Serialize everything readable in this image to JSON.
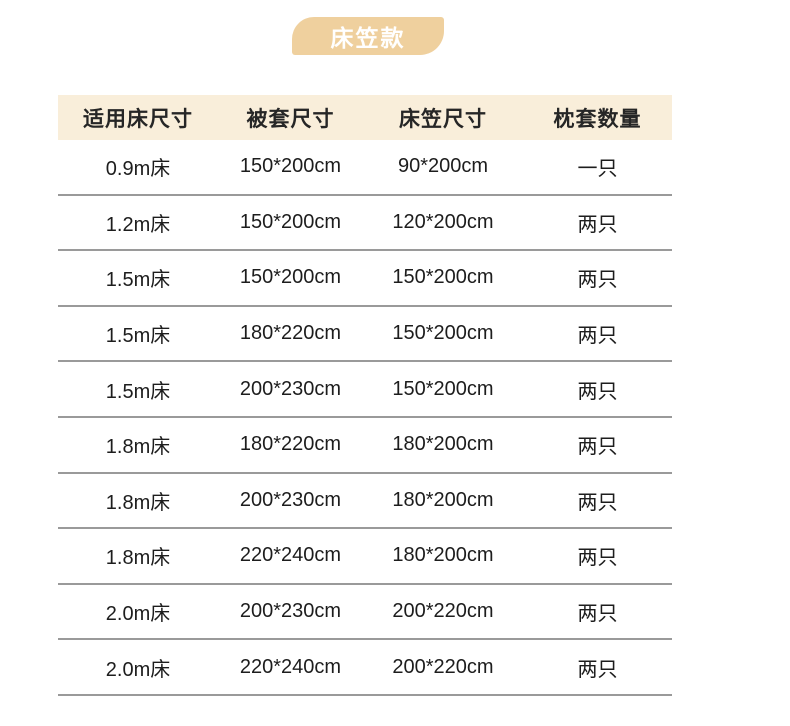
{
  "ribbon": {
    "label": "床笠款"
  },
  "table": {
    "columns": [
      "适用床尺寸",
      "被套尺寸",
      "床笠尺寸",
      "枕套数量"
    ],
    "rows": [
      [
        "0.9m床",
        "150*200cm",
        "90*200cm",
        "一只"
      ],
      [
        "1.2m床",
        "150*200cm",
        "120*200cm",
        "两只"
      ],
      [
        "1.5m床",
        "150*200cm",
        "150*200cm",
        "两只"
      ],
      [
        "1.5m床",
        "180*220cm",
        "150*200cm",
        "两只"
      ],
      [
        "1.5m床",
        "200*230cm",
        "150*200cm",
        "两只"
      ],
      [
        "1.8m床",
        "180*220cm",
        "180*200cm",
        "两只"
      ],
      [
        "1.8m床",
        "200*230cm",
        "180*200cm",
        "两只"
      ],
      [
        "1.8m床",
        "220*240cm",
        "180*200cm",
        "两只"
      ],
      [
        "2.0m床",
        "200*230cm",
        "200*220cm",
        "两只"
      ],
      [
        "2.0m床",
        "220*240cm",
        "200*220cm",
        "两只"
      ]
    ]
  },
  "colors": {
    "accent": "#efd09e",
    "header_bg": "#f9eeda",
    "divider": "#9a9a9a",
    "ribbon_text": "#ffffff",
    "body_text": "#1d1d1d"
  },
  "chart_data": {
    "type": "table",
    "title": "床笠款",
    "columns": [
      "适用床尺寸",
      "被套尺寸",
      "床笠尺寸",
      "枕套数量"
    ],
    "rows": [
      [
        "0.9m床",
        "150*200cm",
        "90*200cm",
        "一只"
      ],
      [
        "1.2m床",
        "150*200cm",
        "120*200cm",
        "两只"
      ],
      [
        "1.5m床",
        "150*200cm",
        "150*200cm",
        "两只"
      ],
      [
        "1.5m床",
        "180*220cm",
        "150*200cm",
        "两只"
      ],
      [
        "1.5m床",
        "200*230cm",
        "150*200cm",
        "两只"
      ],
      [
        "1.8m床",
        "180*220cm",
        "180*200cm",
        "两只"
      ],
      [
        "1.8m床",
        "200*230cm",
        "180*200cm",
        "两只"
      ],
      [
        "1.8m床",
        "220*240cm",
        "180*200cm",
        "两只"
      ],
      [
        "2.0m床",
        "200*230cm",
        "200*220cm",
        "两只"
      ],
      [
        "2.0m床",
        "220*240cm",
        "200*220cm",
        "两只"
      ]
    ]
  }
}
